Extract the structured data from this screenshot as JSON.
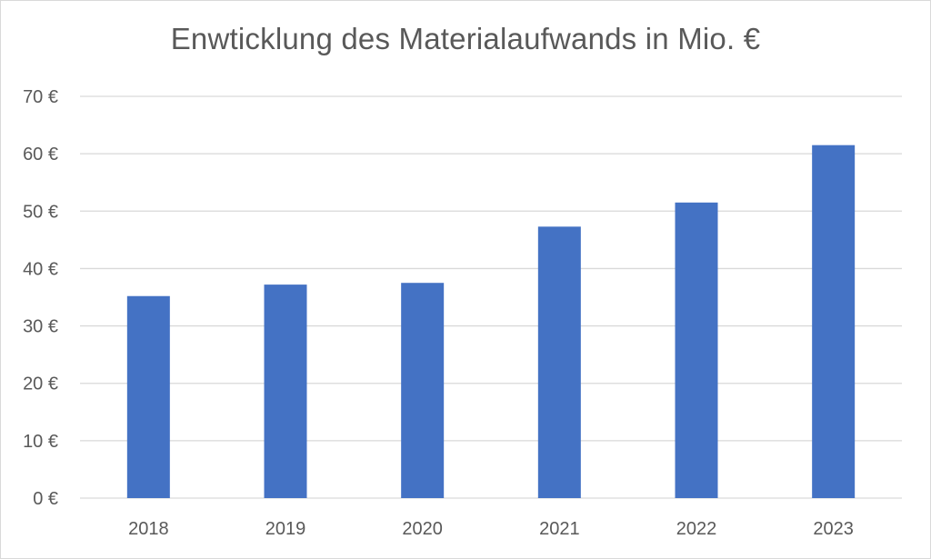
{
  "chart_data": {
    "type": "bar",
    "title": "Enwticklung des Materialaufwands in Mio. €",
    "categories": [
      "2018",
      "2019",
      "2020",
      "2021",
      "2022",
      "2023"
    ],
    "values": [
      35.2,
      37.2,
      37.5,
      47.3,
      51.5,
      61.5
    ],
    "ylim": [
      0,
      70
    ],
    "yticks": [
      0,
      10,
      20,
      30,
      40,
      50,
      60,
      70
    ],
    "ytick_labels": [
      "0 €",
      "10 €",
      "20 €",
      "30 €",
      "40 €",
      "50 €",
      "60 €",
      "70 €"
    ],
    "grid": true,
    "colors": {
      "bar": "#4472c4",
      "grid": "#d9d9d9",
      "text": "#595959"
    }
  }
}
